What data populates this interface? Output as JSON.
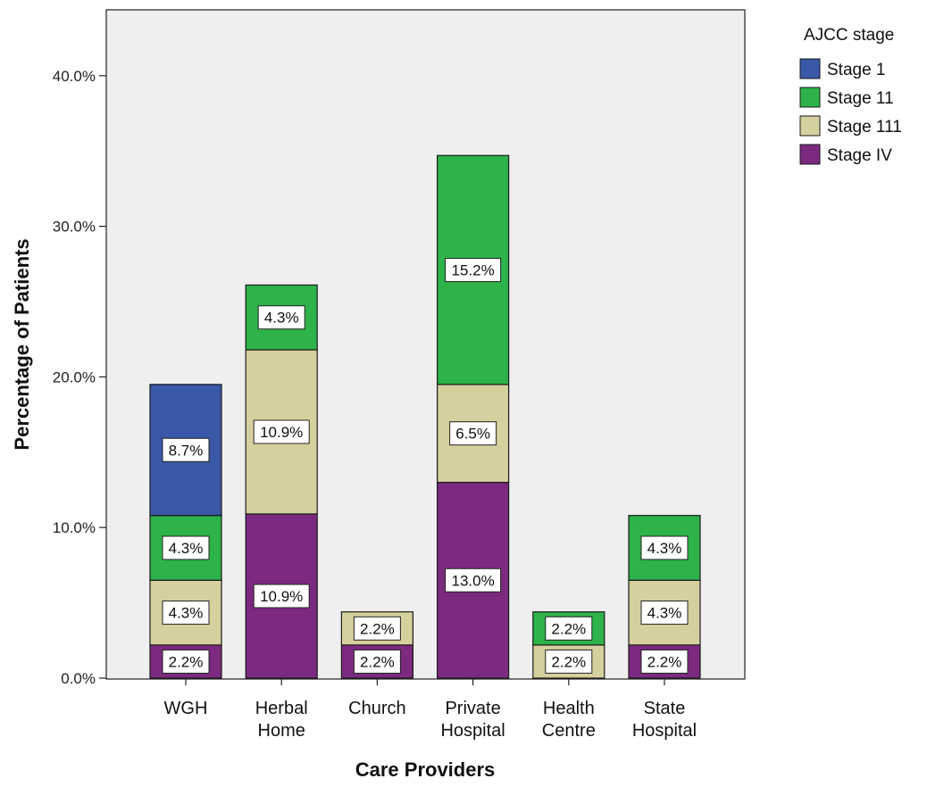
{
  "chart_data": {
    "type": "bar",
    "stacked": true,
    "title": "",
    "xlabel": "Care Providers",
    "ylabel": "Percentage of Patients",
    "ylim": [
      0,
      45
    ],
    "yticks": [
      0,
      10,
      20,
      30,
      40
    ],
    "ytick_labels": [
      "0.0%",
      "10.0%",
      "20.0%",
      "30.0%",
      "40.0%"
    ],
    "grid": false,
    "legend_title": "AJCC stage",
    "legend_position": "top-right, outside plot",
    "categories": [
      [
        "WGH"
      ],
      [
        "Herbal",
        "Home"
      ],
      [
        "Church"
      ],
      [
        "Private",
        "Hospital"
      ],
      [
        "Health",
        "Centre"
      ],
      [
        "State",
        "Hospital"
      ]
    ],
    "series": [
      {
        "name": "Stage IV",
        "color": "#7b2a7f",
        "values": [
          2.2,
          10.9,
          2.2,
          13.0,
          0,
          2.2
        ]
      },
      {
        "name": "Stage 111",
        "color": "#d6cf9e",
        "values": [
          4.3,
          10.9,
          2.2,
          6.5,
          2.2,
          4.3
        ]
      },
      {
        "name": "Stage 11",
        "color": "#2db34a",
        "values": [
          4.3,
          4.3,
          0,
          15.2,
          2.2,
          4.3
        ]
      },
      {
        "name": "Stage 1",
        "color": "#3a58a8",
        "values": [
          8.7,
          0,
          0,
          0,
          0,
          0
        ]
      }
    ],
    "data_labels": [
      [
        "2.2%",
        "10.9%",
        "2.2%",
        "13.0%",
        "",
        "2.2%"
      ],
      [
        "4.3%",
        "10.9%",
        "2.2%",
        "6.5%",
        "2.2%",
        "4.3%"
      ],
      [
        "4.3%",
        "4.3%",
        "",
        "15.2%",
        "2.2%",
        "4.3%"
      ],
      [
        "8.7%",
        "",
        "",
        "",
        "",
        ""
      ]
    ],
    "legend_order": [
      "Stage 1",
      "Stage 11",
      "Stage 111",
      "Stage IV"
    ],
    "plot_background": "#efefef"
  }
}
